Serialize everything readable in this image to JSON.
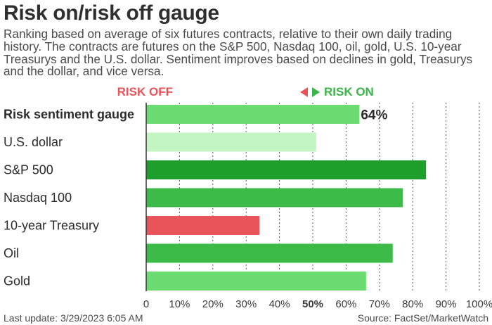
{
  "title": "Risk on/risk off gauge",
  "subtitle": "Ranking based on average of six futures contracts, relative to their own daily trading history. The contracts are futures on the S&P 500, Nasdaq 100, oil, gold, U.S. 10-year Treasurys and the U.S. dollar. Sentiment improves based on declines in gold, Treasurys and the dollar, and vice versa.",
  "legend": {
    "risk_off": "RISK OFF",
    "risk_on": "RISK ON"
  },
  "footer": {
    "last_update": "Last update: 3/29/2023 6:05 AM",
    "source": "Source: FactSet/MarketWatch"
  },
  "colors": {
    "light_green": "#6cdc72",
    "pale_green": "#c3f5c3",
    "dark_green": "#1e9e2a",
    "mid_green": "#3dbb48",
    "red": "#e9545a",
    "axis": "#333333",
    "grid": "#555555"
  },
  "chart_data": {
    "type": "bar",
    "orientation": "horizontal",
    "categories": [
      "Risk sentiment gauge",
      "U.S. dollar",
      "S&P 500",
      "Nasdaq 100",
      "10-year Treasury",
      "Oil",
      "Gold"
    ],
    "values": [
      64,
      51,
      84,
      77,
      34,
      74,
      66
    ],
    "value_labels": [
      "64%",
      "",
      "",
      "",
      "",
      "",
      ""
    ],
    "bar_colors": [
      "#6cdc72",
      "#c3f5c3",
      "#1e9e2a",
      "#3dbb48",
      "#e9545a",
      "#3dbb48",
      "#6cdc72"
    ],
    "bold_categories": [
      "Risk sentiment gauge"
    ],
    "xlim": [
      0,
      100
    ],
    "xticks": [
      0,
      10,
      20,
      30,
      40,
      50,
      60,
      70,
      80,
      90,
      100
    ],
    "xtick_labels": [
      "0",
      "10%",
      "20%",
      "30%",
      "40%",
      "50%",
      "60%",
      "70%",
      "80%",
      "90%",
      "100%"
    ],
    "bold_ticks": [
      50
    ],
    "grid": "vertical dotted"
  }
}
